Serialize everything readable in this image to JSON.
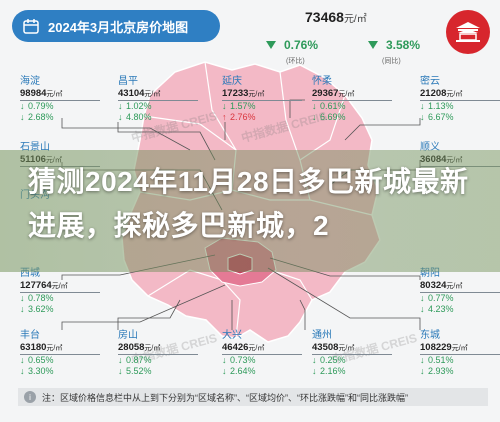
{
  "title": "2024年3月北京房价地图",
  "overall": {
    "price": "73468",
    "unit": "元/㎡",
    "mom": "0.76%",
    "mom_label": "(环比)",
    "yoy": "3.58%",
    "yoy_label": "(同比)"
  },
  "headline": "猜测2024年11月28日多巴新城最新进展，探秘多巴新城，2",
  "watermark": "中指数据 CREIS",
  "note": "注：区域价格信息栏中从上到下分别为“区域名称”、“区域均价”、“环比涨跌幅”和“同比涨跌幅”",
  "districts": [
    {
      "name": "海淀",
      "price": "98984",
      "unit": "元/㎡",
      "mom_dir": "down",
      "mom": "0.79%",
      "yoy_dir": "down",
      "yoy": "2.68%"
    },
    {
      "name": "昌平",
      "price": "43104",
      "unit": "元/㎡",
      "mom_dir": "down",
      "mom": "1.02%",
      "yoy_dir": "down",
      "yoy": "4.80%"
    },
    {
      "name": "延庆",
      "price": "17233",
      "unit": "元/㎡",
      "mom_dir": "down",
      "mom": "1.57%",
      "yoy_dir": "up",
      "yoy": "2.76%"
    },
    {
      "name": "怀柔",
      "price": "29367",
      "unit": "元/㎡",
      "mom_dir": "down",
      "mom": "0.61%",
      "yoy_dir": "down",
      "yoy": "6.69%"
    },
    {
      "name": "密云",
      "price": "21208",
      "unit": "元/㎡",
      "mom_dir": "down",
      "mom": "1.13%",
      "yoy_dir": "down",
      "yoy": "6.67%"
    },
    {
      "name": "石景山",
      "price": "51106",
      "unit": "元/㎡",
      "mom_dir": "",
      "mom": "",
      "yoy_dir": "",
      "yoy": ""
    },
    {
      "name": "顺义",
      "price": "36084",
      "unit": "元/㎡",
      "mom_dir": "",
      "mom": "",
      "yoy_dir": "",
      "yoy": ""
    },
    {
      "name": "门头沟",
      "price": "",
      "unit": "",
      "mom_dir": "",
      "mom": "",
      "yoy_dir": "",
      "yoy": ""
    },
    {
      "name": "西城",
      "price": "127764",
      "unit": "元/㎡",
      "mom_dir": "down",
      "mom": "0.78%",
      "yoy_dir": "down",
      "yoy": "3.62%"
    },
    {
      "name": "朝阳",
      "price": "80324",
      "unit": "元/㎡",
      "mom_dir": "down",
      "mom": "0.77%",
      "yoy_dir": "down",
      "yoy": "4.23%"
    },
    {
      "name": "丰台",
      "price": "63180",
      "unit": "元/㎡",
      "mom_dir": "down",
      "mom": "0.65%",
      "yoy_dir": "down",
      "yoy": "3.30%"
    },
    {
      "name": "房山",
      "price": "28058",
      "unit": "元/㎡",
      "mom_dir": "down",
      "mom": "0.87%",
      "yoy_dir": "down",
      "yoy": "5.52%"
    },
    {
      "name": "大兴",
      "price": "46426",
      "unit": "元/㎡",
      "mom_dir": "down",
      "mom": "0.73%",
      "yoy_dir": "down",
      "yoy": "2.64%"
    },
    {
      "name": "通州",
      "price": "43508",
      "unit": "元/㎡",
      "mom_dir": "down",
      "mom": "0.25%",
      "yoy_dir": "down",
      "yoy": "2.16%"
    },
    {
      "name": "东城",
      "price": "108229",
      "unit": "元/㎡",
      "mom_dir": "down",
      "mom": "0.51%",
      "yoy_dir": "down",
      "yoy": "2.93%"
    }
  ],
  "colors": {
    "title_bg": "#2f7fc3",
    "down": "#2e9a5a",
    "up": "#d9363e",
    "logo": "#d7262d",
    "map_light": "#f3b9c6",
    "map_mid": "#e47a95",
    "map_dark": "#c93a5f"
  }
}
